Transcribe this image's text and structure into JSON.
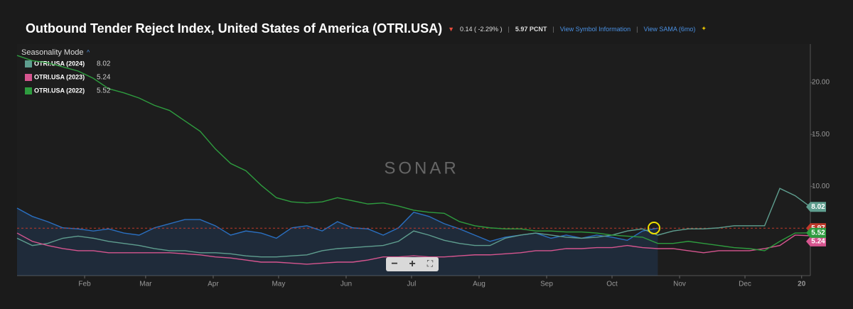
{
  "header": {
    "title": "Outbound Tender Reject Index, United States of America (OTRI.USA)",
    "change": "0.14 ( -2.29% )",
    "price": "5.97 PCNT",
    "links": [
      "View Symbol Information",
      "View SAMA (6mo)"
    ]
  },
  "watermark": "SONAR",
  "legend_title": "Seasonality Mode",
  "chart_data": {
    "type": "line",
    "x": [
      1,
      8,
      15,
      22,
      29,
      36,
      43,
      50,
      57,
      64,
      71,
      78,
      85,
      92,
      99,
      106,
      113,
      120,
      127,
      134,
      141,
      148,
      155,
      162,
      169,
      176,
      183,
      190,
      197,
      204,
      211,
      218,
      225,
      232,
      239,
      246,
      253,
      260,
      267,
      274,
      281,
      288,
      295,
      302,
      309,
      316,
      323,
      330,
      337,
      344,
      351,
      358,
      365
    ],
    "xlim": [
      1,
      365
    ],
    "xticks": [
      {
        "value": 32,
        "label": "Feb"
      },
      {
        "value": 60,
        "label": "Mar"
      },
      {
        "value": 91,
        "label": "Apr"
      },
      {
        "value": 121,
        "label": "May"
      },
      {
        "value": 152,
        "label": "Jun"
      },
      {
        "value": 182,
        "label": "Jul"
      },
      {
        "value": 213,
        "label": "Aug"
      },
      {
        "value": 244,
        "label": "Sep"
      },
      {
        "value": 274,
        "label": "Oct"
      },
      {
        "value": 305,
        "label": "Nov"
      },
      {
        "value": 335,
        "label": "Dec"
      },
      {
        "value": 361,
        "label": "20"
      }
    ],
    "ylim": [
      1.4,
      23.7
    ],
    "yticks": [
      {
        "value": 10,
        "label": "10.00"
      },
      {
        "value": 15,
        "label": "15.00"
      },
      {
        "value": 20,
        "label": "20.00"
      }
    ],
    "series": [
      {
        "name": "OTRI.USA (2024)",
        "color": "#5f9e8f",
        "values": [
          5.0,
          4.3,
          4.5,
          5.0,
          5.2,
          5.0,
          4.7,
          4.5,
          4.3,
          4.0,
          3.8,
          3.8,
          3.6,
          3.6,
          3.5,
          3.3,
          3.2,
          3.2,
          3.3,
          3.4,
          3.8,
          4.0,
          4.1,
          4.2,
          4.3,
          4.7,
          5.7,
          5.3,
          4.8,
          4.5,
          4.3,
          4.3,
          5.0,
          5.3,
          5.5,
          5.3,
          5.1,
          5.0,
          5.1,
          5.3,
          5.7,
          5.9,
          5.3,
          5.7,
          5.9,
          5.9,
          6.0,
          6.2,
          6.2,
          6.2,
          9.8,
          9.1,
          8.02
        ]
      },
      {
        "name": "OTRI.USA (2023)",
        "color": "#d6558f",
        "values": [
          5.5,
          4.7,
          4.3,
          4.0,
          3.8,
          3.8,
          3.6,
          3.6,
          3.6,
          3.6,
          3.6,
          3.5,
          3.4,
          3.2,
          3.1,
          2.9,
          2.7,
          2.7,
          2.6,
          2.5,
          2.6,
          2.7,
          2.7,
          2.9,
          3.2,
          3.2,
          3.3,
          3.2,
          3.2,
          3.3,
          3.4,
          3.4,
          3.5,
          3.6,
          3.8,
          3.8,
          4.0,
          4.0,
          4.1,
          4.1,
          4.3,
          4.1,
          4.0,
          4.0,
          3.8,
          3.6,
          3.8,
          3.8,
          3.8,
          4.0,
          4.3,
          5.3,
          5.24
        ]
      },
      {
        "name": "OTRI.USA (2022)",
        "color": "#2e9c3f",
        "values": [
          22.6,
          22.1,
          21.9,
          21.5,
          21.1,
          20.4,
          19.4,
          19.0,
          18.5,
          17.8,
          17.3,
          16.3,
          15.3,
          13.6,
          12.2,
          11.5,
          10.1,
          8.9,
          8.5,
          8.4,
          8.5,
          8.9,
          8.6,
          8.3,
          8.4,
          8.1,
          7.7,
          7.5,
          7.4,
          6.6,
          6.2,
          6.0,
          5.9,
          5.9,
          5.7,
          5.7,
          5.6,
          5.6,
          5.5,
          5.3,
          5.2,
          5.1,
          4.5,
          4.5,
          4.7,
          4.5,
          4.3,
          4.1,
          4.0,
          3.8,
          4.7,
          5.5,
          5.52
        ]
      },
      {
        "color": "#2a6fc0",
        "values": [
          7.9,
          7.1,
          6.6,
          6.0,
          5.9,
          5.7,
          5.9,
          5.5,
          5.3,
          6.0,
          6.4,
          6.8,
          6.8,
          6.2,
          5.3,
          5.7,
          5.5,
          5.0,
          6.0,
          6.2,
          5.7,
          6.6,
          6.0,
          5.9,
          5.3,
          6.0,
          7.5,
          7.1,
          6.4,
          5.9,
          5.3,
          4.7,
          5.1,
          5.3,
          5.5,
          5.0,
          5.3,
          5.0,
          5.3,
          5.1,
          4.8,
          5.7,
          5.97,
          null,
          null,
          null,
          null,
          null,
          null,
          null,
          null,
          null,
          null
        ],
        "area": true,
        "last_color": "#c0392b"
      }
    ]
  }
}
